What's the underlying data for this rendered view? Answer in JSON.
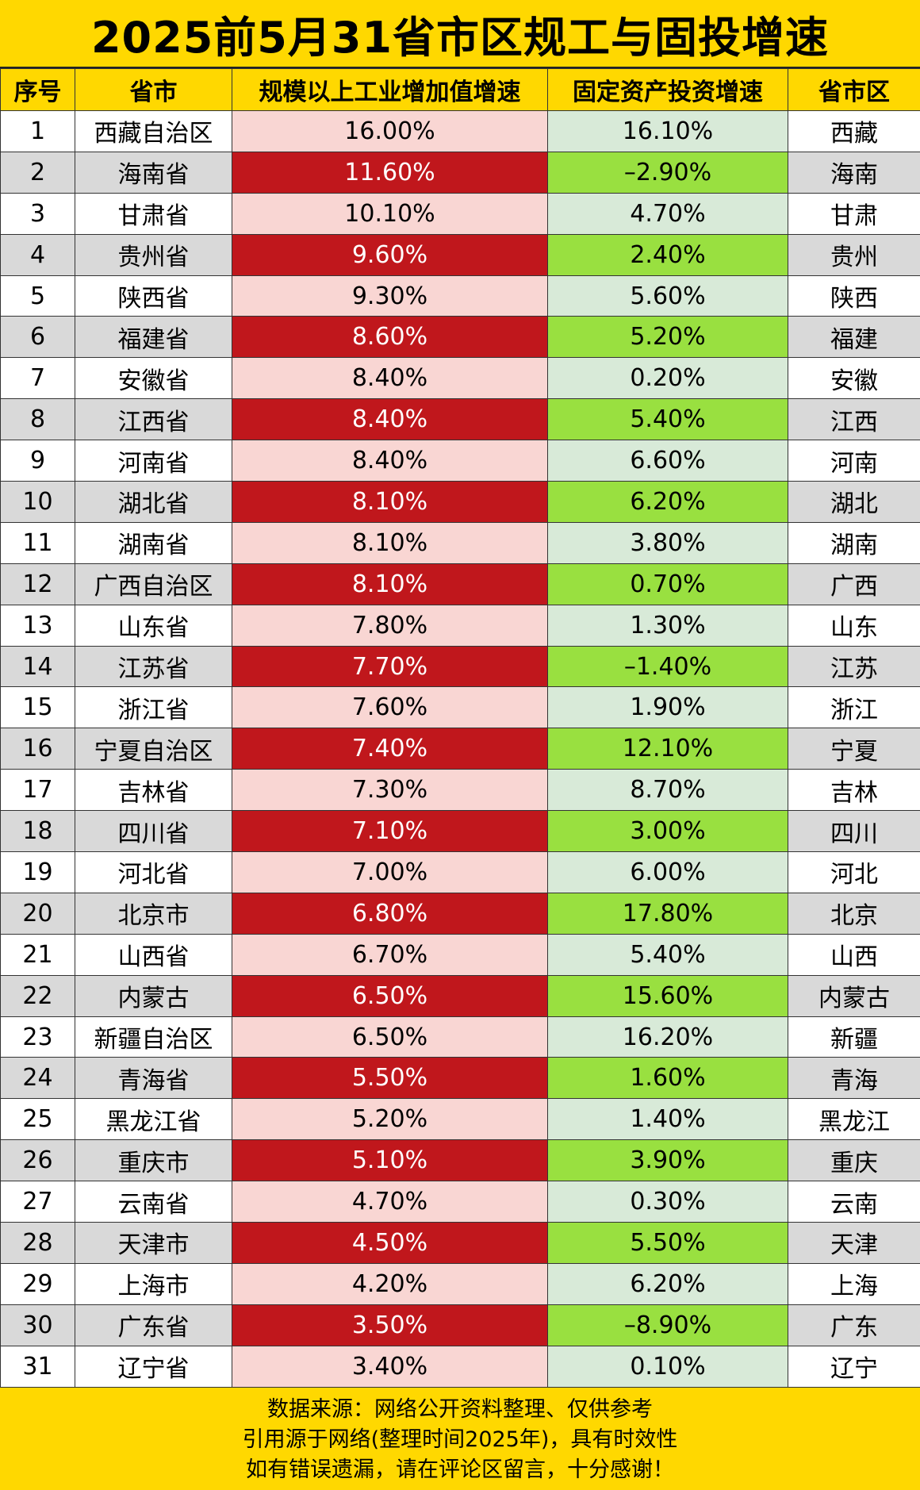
{
  "title": "2025前5月31省市区规工与固投增速",
  "headers": [
    "序号",
    "省市",
    "规模以上工业增加值增速",
    "固定资产投资增速",
    "省市区"
  ],
  "colors": {
    "background_yellow": "#ffd800",
    "industry_light": "#f9d6d3",
    "industry_dark": "#c0171c",
    "investment_light": "#d8ead8",
    "investment_dark": "#99e040",
    "row_gray": "#d9d9d9"
  },
  "chart_data": {
    "type": "table",
    "columns": [
      "序号",
      "省市",
      "规模以上工业增加值增速",
      "固定资产投资增速",
      "省市区"
    ],
    "rows": [
      {
        "rank": "1",
        "province": "西藏自治区",
        "industry": "16.00%",
        "investment": "16.10%",
        "short": "西藏"
      },
      {
        "rank": "2",
        "province": "海南省",
        "industry": "11.60%",
        "investment": "–2.90%",
        "short": "海南"
      },
      {
        "rank": "3",
        "province": "甘肃省",
        "industry": "10.10%",
        "investment": "4.70%",
        "short": "甘肃"
      },
      {
        "rank": "4",
        "province": "贵州省",
        "industry": "9.60%",
        "investment": "2.40%",
        "short": "贵州"
      },
      {
        "rank": "5",
        "province": "陕西省",
        "industry": "9.30%",
        "investment": "5.60%",
        "short": "陕西"
      },
      {
        "rank": "6",
        "province": "福建省",
        "industry": "8.60%",
        "investment": "5.20%",
        "short": "福建"
      },
      {
        "rank": "7",
        "province": "安徽省",
        "industry": "8.40%",
        "investment": "0.20%",
        "short": "安徽"
      },
      {
        "rank": "8",
        "province": "江西省",
        "industry": "8.40%",
        "investment": "5.40%",
        "short": "江西"
      },
      {
        "rank": "9",
        "province": "河南省",
        "industry": "8.40%",
        "investment": "6.60%",
        "short": "河南"
      },
      {
        "rank": "10",
        "province": "湖北省",
        "industry": "8.10%",
        "investment": "6.20%",
        "short": "湖北"
      },
      {
        "rank": "11",
        "province": "湖南省",
        "industry": "8.10%",
        "investment": "3.80%",
        "short": "湖南"
      },
      {
        "rank": "12",
        "province": "广西自治区",
        "industry": "8.10%",
        "investment": "0.70%",
        "short": "广西"
      },
      {
        "rank": "13",
        "province": "山东省",
        "industry": "7.80%",
        "investment": "1.30%",
        "short": "山东"
      },
      {
        "rank": "14",
        "province": "江苏省",
        "industry": "7.70%",
        "investment": "–1.40%",
        "short": "江苏"
      },
      {
        "rank": "15",
        "province": "浙江省",
        "industry": "7.60%",
        "investment": "1.90%",
        "short": "浙江"
      },
      {
        "rank": "16",
        "province": "宁夏自治区",
        "industry": "7.40%",
        "investment": "12.10%",
        "short": "宁夏"
      },
      {
        "rank": "17",
        "province": "吉林省",
        "industry": "7.30%",
        "investment": "8.70%",
        "short": "吉林"
      },
      {
        "rank": "18",
        "province": "四川省",
        "industry": "7.10%",
        "investment": "3.00%",
        "short": "四川"
      },
      {
        "rank": "19",
        "province": "河北省",
        "industry": "7.00%",
        "investment": "6.00%",
        "short": "河北"
      },
      {
        "rank": "20",
        "province": "北京市",
        "industry": "6.80%",
        "investment": "17.80%",
        "short": "北京"
      },
      {
        "rank": "21",
        "province": "山西省",
        "industry": "6.70%",
        "investment": "5.40%",
        "short": "山西"
      },
      {
        "rank": "22",
        "province": "内蒙古",
        "industry": "6.50%",
        "investment": "15.60%",
        "short": "内蒙古"
      },
      {
        "rank": "23",
        "province": "新疆自治区",
        "industry": "6.50%",
        "investment": "16.20%",
        "short": "新疆"
      },
      {
        "rank": "24",
        "province": "青海省",
        "industry": "5.50%",
        "investment": "1.60%",
        "short": "青海"
      },
      {
        "rank": "25",
        "province": "黑龙江省",
        "industry": "5.20%",
        "investment": "1.40%",
        "short": "黑龙江"
      },
      {
        "rank": "26",
        "province": "重庆市",
        "industry": "5.10%",
        "investment": "3.90%",
        "short": "重庆"
      },
      {
        "rank": "27",
        "province": "云南省",
        "industry": "4.70%",
        "investment": "0.30%",
        "short": "云南"
      },
      {
        "rank": "28",
        "province": "天津市",
        "industry": "4.50%",
        "investment": "5.50%",
        "short": "天津"
      },
      {
        "rank": "29",
        "province": "上海市",
        "industry": "4.20%",
        "investment": "6.20%",
        "short": "上海"
      },
      {
        "rank": "30",
        "province": "广东省",
        "industry": "3.50%",
        "investment": "–8.90%",
        "short": "广东"
      },
      {
        "rank": "31",
        "province": "辽宁省",
        "industry": "3.40%",
        "investment": "0.10%",
        "short": "辽宁"
      }
    ]
  },
  "footer": {
    "line1": "数据来源：网络公开资料整理、仅供参考",
    "line2": "引用源于网络(整理时间2025年)，具有时效性",
    "line3": "如有错误遗漏，请在评论区留言，十分感谢！"
  }
}
